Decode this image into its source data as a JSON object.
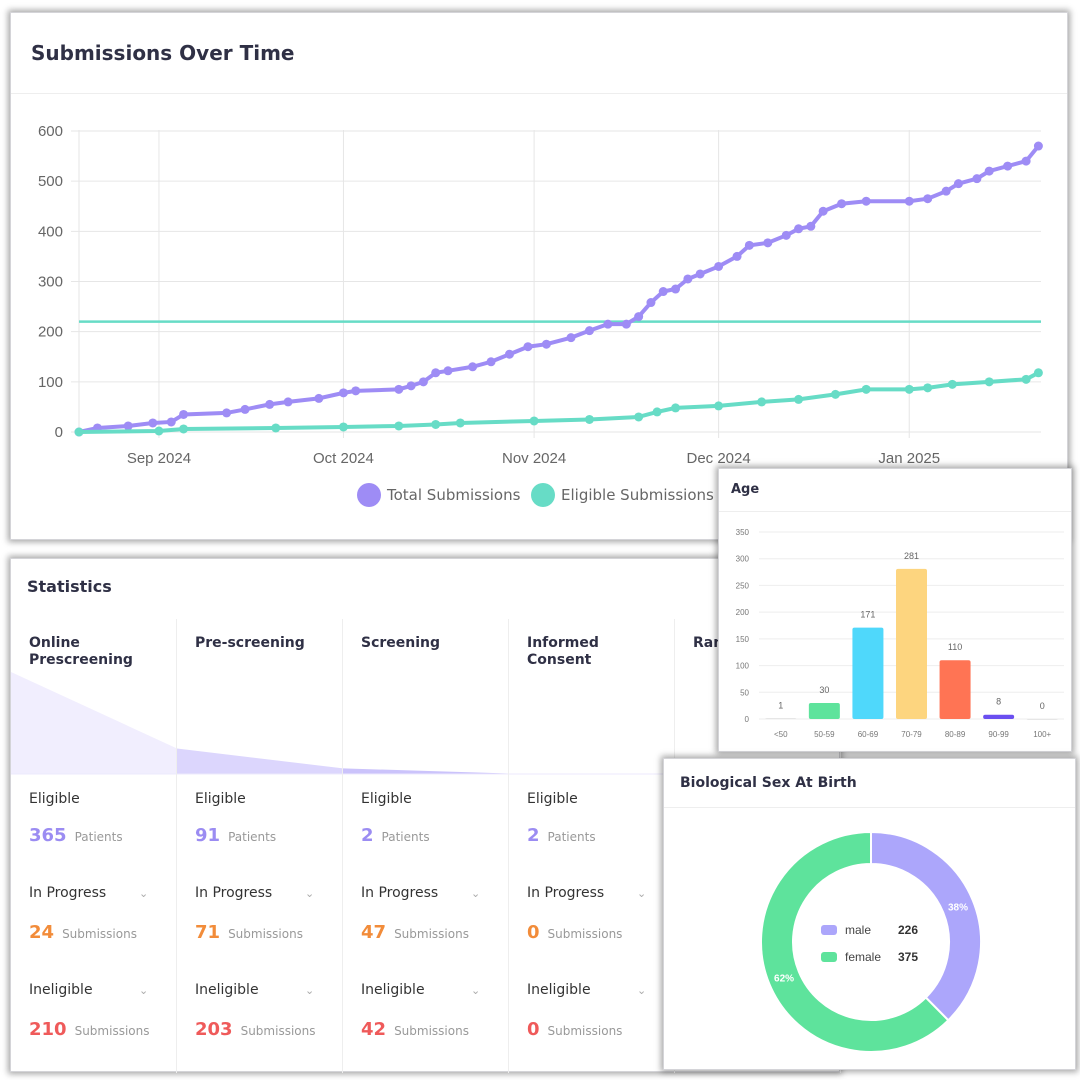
{
  "submissions_card": {
    "title": "Submissions Over Time"
  },
  "statistics_card": {
    "title": "Statistics",
    "stages": [
      {
        "name": "Online Prescreening",
        "eligible": "365",
        "in_progress": "24",
        "ineligible": "210"
      },
      {
        "name": "Pre-screening",
        "eligible": "91",
        "in_progress": "71",
        "ineligible": "203"
      },
      {
        "name": "Screening",
        "eligible": "2",
        "in_progress": "47",
        "ineligible": "42"
      },
      {
        "name": "Informed Consent",
        "eligible": "2",
        "in_progress": "0",
        "ineligible": "0"
      },
      {
        "name": "Ran"
      }
    ],
    "labels": {
      "eligible": "Eligible",
      "in_progress": "In Progress",
      "ineligible": "Ineligible",
      "patients": "Patients",
      "submissions": "Submissions"
    },
    "funnel_fractions": [
      1.0,
      0.25,
      0.055,
      0.005
    ],
    "colors": {
      "eligible": "#9b8cf2",
      "in_progress": "#f28c3a",
      "ineligible": "#ef5a5a"
    }
  },
  "age_card": {
    "title": "Age"
  },
  "sex_card": {
    "title": "Biological Sex At Birth"
  },
  "chart_data": [
    {
      "type": "line",
      "title": "Submissions Over Time",
      "xlabel": "",
      "ylabel": "",
      "ylim": [
        0,
        600
      ],
      "yticks": [
        "0",
        "100",
        "200",
        "300",
        "400",
        "500",
        "600"
      ],
      "xticks": [
        "Sep 2024",
        "Oct 2024",
        "Nov 2024",
        "Dec 2024",
        "Jan 2025"
      ],
      "grid": true,
      "legend": "bottom",
      "reference_line": {
        "value": 220,
        "color": "#67dcc6"
      },
      "series": [
        {
          "name": "Total Submissions",
          "color": "#9e8cf5",
          "points": [
            [
              "2024-08-19",
              0
            ],
            [
              "2024-08-22",
              8
            ],
            [
              "2024-08-27",
              12
            ],
            [
              "2024-08-31",
              18
            ],
            [
              "2024-09-03",
              20
            ],
            [
              "2024-09-05",
              35
            ],
            [
              "2024-09-12",
              38
            ],
            [
              "2024-09-15",
              45
            ],
            [
              "2024-09-19",
              55
            ],
            [
              "2024-09-22",
              60
            ],
            [
              "2024-09-27",
              67
            ],
            [
              "2024-10-01",
              78
            ],
            [
              "2024-10-03",
              82
            ],
            [
              "2024-10-10",
              85
            ],
            [
              "2024-10-12",
              92
            ],
            [
              "2024-10-14",
              100
            ],
            [
              "2024-10-16",
              118
            ],
            [
              "2024-10-18",
              122
            ],
            [
              "2024-10-22",
              130
            ],
            [
              "2024-10-25",
              140
            ],
            [
              "2024-10-28",
              155
            ],
            [
              "2024-10-31",
              170
            ],
            [
              "2024-11-03",
              175
            ],
            [
              "2024-11-07",
              188
            ],
            [
              "2024-11-10",
              202
            ],
            [
              "2024-11-13",
              215
            ],
            [
              "2024-11-16",
              215
            ],
            [
              "2024-11-18",
              230
            ],
            [
              "2024-11-20",
              258
            ],
            [
              "2024-11-22",
              280
            ],
            [
              "2024-11-24",
              285
            ],
            [
              "2024-11-26",
              305
            ],
            [
              "2024-11-28",
              315
            ],
            [
              "2024-12-01",
              330
            ],
            [
              "2024-12-04",
              350
            ],
            [
              "2024-12-06",
              372
            ],
            [
              "2024-12-09",
              377
            ],
            [
              "2024-12-12",
              392
            ],
            [
              "2024-12-14",
              405
            ],
            [
              "2024-12-16",
              410
            ],
            [
              "2024-12-18",
              440
            ],
            [
              "2024-12-21",
              455
            ],
            [
              "2024-12-25",
              460
            ],
            [
              "2025-01-01",
              460
            ],
            [
              "2025-01-04",
              465
            ],
            [
              "2025-01-07",
              480
            ],
            [
              "2025-01-09",
              495
            ],
            [
              "2025-01-12",
              505
            ],
            [
              "2025-01-14",
              520
            ],
            [
              "2025-01-17",
              530
            ],
            [
              "2025-01-20",
              540
            ],
            [
              "2025-01-22",
              570
            ]
          ]
        },
        {
          "name": "Eligible Submissions",
          "color": "#67dcc6",
          "points": [
            [
              "2024-08-19",
              0
            ],
            [
              "2024-09-01",
              2
            ],
            [
              "2024-09-05",
              6
            ],
            [
              "2024-09-20",
              8
            ],
            [
              "2024-10-01",
              10
            ],
            [
              "2024-10-10",
              12
            ],
            [
              "2024-10-16",
              15
            ],
            [
              "2024-10-20",
              18
            ],
            [
              "2024-11-01",
              22
            ],
            [
              "2024-11-10",
              25
            ],
            [
              "2024-11-18",
              30
            ],
            [
              "2024-11-21",
              40
            ],
            [
              "2024-11-24",
              48
            ],
            [
              "2024-12-01",
              52
            ],
            [
              "2024-12-08",
              60
            ],
            [
              "2024-12-14",
              65
            ],
            [
              "2024-12-20",
              75
            ],
            [
              "2024-12-25",
              85
            ],
            [
              "2025-01-01",
              85
            ],
            [
              "2025-01-04",
              88
            ],
            [
              "2025-01-08",
              95
            ],
            [
              "2025-01-14",
              100
            ],
            [
              "2025-01-20",
              105
            ],
            [
              "2025-01-22",
              118
            ]
          ]
        }
      ]
    },
    {
      "type": "bar",
      "title": "Age",
      "ylim": [
        0,
        350
      ],
      "yticks": [
        "0",
        "50",
        "100",
        "150",
        "200",
        "250",
        "300",
        "350"
      ],
      "categories": [
        "<50",
        "50-59",
        "60-69",
        "70-79",
        "80-89",
        "90-99",
        "100+"
      ],
      "values": [
        1,
        30,
        171,
        281,
        110,
        8,
        0
      ],
      "colors": [
        "#cccccc",
        "#5ee39c",
        "#4fd8fb",
        "#fdd57f",
        "#ff7454",
        "#6a4ff0",
        "#cccccc"
      ]
    },
    {
      "type": "pie",
      "title": "Biological Sex At Birth",
      "donut": true,
      "legend": "center",
      "slices": [
        {
          "label": "male",
          "value": 226,
          "percent": "38%",
          "color": "#aca6fb"
        },
        {
          "label": "female",
          "value": 375,
          "percent": "62%",
          "color": "#5ee39c"
        }
      ]
    }
  ]
}
